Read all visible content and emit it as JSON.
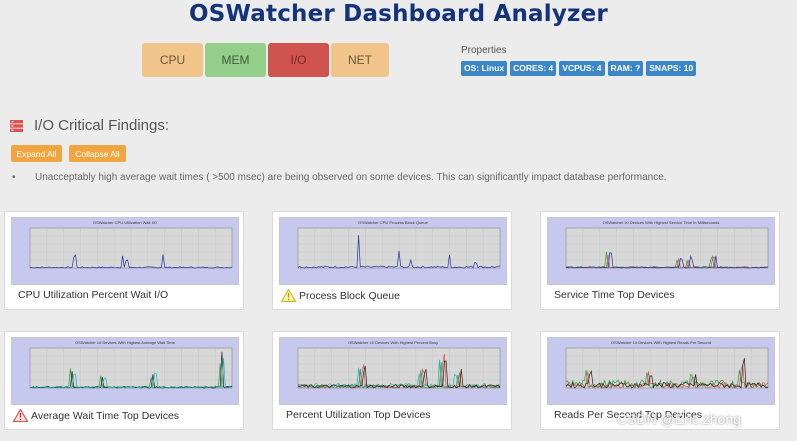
{
  "app": {
    "title": "OSWatcher Dashboard Analyzer"
  },
  "tabs": [
    {
      "label": "CPU",
      "color": "#f0c48a"
    },
    {
      "label": "MEM",
      "color": "#93cf8a"
    },
    {
      "label": "I/O",
      "color": "#cf5450",
      "active": true
    },
    {
      "label": "NET",
      "color": "#f0c48a"
    }
  ],
  "properties": {
    "title": "Properties",
    "badges": [
      "OS: Linux",
      "CORES: 4",
      "VCPUS: 4",
      "RAM: ?",
      "SNAPS: 10"
    ]
  },
  "findings": {
    "icon": "server-icon",
    "title": "I/O Critical Findings:",
    "expand_label": "Expand All",
    "collapse_label": "Collapse All",
    "items": [
      "Unacceptably high average wait times ( >500 msec) are being observed on some devices. This can significantly impact database performance."
    ]
  },
  "cards": [
    {
      "label": "CPU Utilization Percent Wait I/O",
      "warning": "",
      "chart_title": "OSWatcher CPU Utilization Wait I/O"
    },
    {
      "label": "Process Block Queue",
      "warning": "yellow",
      "chart_title": "OSWatcher CPU Process Block Queue"
    },
    {
      "label": "Service Time Top Devices",
      "warning": "",
      "chart_title": "OSWatcher 10 Devices With Highest Service Time In Milliseconds"
    },
    {
      "label": "Average Wait Time Top Devices",
      "warning": "red",
      "chart_title": "OSWatcher 10 Devices With Highest Average Wait Time"
    },
    {
      "label": "Percent Utilization Top Devices",
      "warning": "",
      "chart_title": "OSWatcher 10 Devices With Highest Percent Busy"
    },
    {
      "label": "Reads Per Second Top Devices",
      "warning": "",
      "chart_title": "OSWatcher 10 Devices With Highest Reads Per Second"
    }
  ],
  "watermark": "CSDN @Eric.zhong",
  "colors": {
    "title": "#14347a",
    "badge": "#3b86c6",
    "button": "#f0a540",
    "chart_bg": "#c6c8ee"
  }
}
